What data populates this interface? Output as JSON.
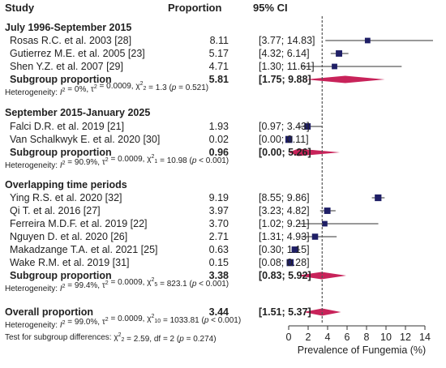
{
  "chart_data": {
    "type": "forest",
    "header": {
      "study": "Study",
      "proportion": "Proportion",
      "ci": "95% CI"
    },
    "xlabel": "Prevalence of Fungemia (%)",
    "xlim": [
      0,
      14
    ],
    "xticks": [
      0,
      2,
      4,
      6,
      8,
      10,
      12,
      14
    ],
    "reference_line": 3.44,
    "colors": {
      "square": "#1f1f66",
      "diamond": "#c8235a",
      "reference": "#555555",
      "text": "#222222"
    },
    "groups": [
      {
        "name": "July 1996-September 2015",
        "studies": [
          {
            "label": "Rosas R.C. et al. 2003 [28]",
            "value": 8.11,
            "lo": 3.77,
            "hi": 14.83,
            "p": "8.11",
            "ci": "[3.77; 14.83]",
            "weight": 0.5
          },
          {
            "label": "Gutierrez M.E. et al. 2005 [23]",
            "value": 5.17,
            "lo": 4.32,
            "hi": 6.14,
            "p": "5.17",
            "ci": "[4.32; 6.14]",
            "weight": 0.8
          },
          {
            "label": "Shen Y.Z. et al. 2007 [29]",
            "value": 4.71,
            "lo": 1.3,
            "hi": 11.61,
            "p": "4.71",
            "ci": "[1.30; 11.61]",
            "weight": 0.5
          }
        ],
        "subgroup": {
          "label": "Subgroup proportion",
          "value": 5.81,
          "lo": 1.75,
          "hi": 9.88,
          "p": "5.81",
          "ci": "[1.75; 9.88]"
        },
        "heterogeneity": [
          {
            "t": "Heterogeneity: "
          },
          {
            "t": "I",
            "i": true
          },
          {
            "t": "2",
            "sup": true
          },
          {
            "t": " = 0%, τ"
          },
          {
            "t": "2",
            "sup": true
          },
          {
            "t": " = 0.0009, χ"
          },
          {
            "t": "2",
            "sup": true
          },
          {
            "t": "2",
            "sub": true
          },
          {
            "t": " = 1.3 ("
          },
          {
            "t": "p",
            "i": true
          },
          {
            "t": " = 0.521)"
          }
        ]
      },
      {
        "name": "September 2015-January 2025",
        "studies": [
          {
            "label": "Falci D.R. et al.  2019 [21]",
            "value": 1.93,
            "lo": 0.97,
            "hi": 3.43,
            "p": "1.93",
            "ci": "[0.97; 3.43]",
            "weight": 0.8
          },
          {
            "label": "Van Schalkwyk E. et al. 2020 [30]",
            "value": 0.02,
            "lo": 0.0,
            "hi": 0.11,
            "p": "0.02",
            "ci": "[0.00; 0.11]",
            "weight": 1.0
          }
        ],
        "subgroup": {
          "label": "Subgroup proportion",
          "value": 0.96,
          "lo": 0.0,
          "hi": 5.26,
          "p": "0.96",
          "ci": "[0.00; 5.26]"
        },
        "heterogeneity": [
          {
            "t": "Heterogeneity: "
          },
          {
            "t": "I",
            "i": true
          },
          {
            "t": "2",
            "sup": true
          },
          {
            "t": " = 90.9%, τ"
          },
          {
            "t": "2",
            "sup": true
          },
          {
            "t": " = 0.0009, χ"
          },
          {
            "t": "2",
            "sup": true
          },
          {
            "t": "1",
            "sub": true
          },
          {
            "t": " = 10.98 ("
          },
          {
            "t": "p",
            "i": true
          },
          {
            "t": " < 0.001)"
          }
        ]
      },
      {
        "name": "Overlapping time periods",
        "studies": [
          {
            "label": "Ying R.S. et al. 2020 [32]",
            "value": 9.19,
            "lo": 8.55,
            "hi": 9.86,
            "p": "9.19",
            "ci": "[8.55; 9.86]",
            "weight": 0.9
          },
          {
            "label": "Qi T. et al. 2016 [27]",
            "value": 3.97,
            "lo": 3.23,
            "hi": 4.82,
            "p": "3.97",
            "ci": "[3.23; 4.82]",
            "weight": 0.8
          },
          {
            "label": "Ferreira M.D.F.  et al. 2019 [22]",
            "value": 3.7,
            "lo": 1.02,
            "hi": 9.21,
            "p": "3.70",
            "ci": "[1.02; 9.21]",
            "weight": 0.5
          },
          {
            "label": "Nguyen D. et al.  2020 [26]",
            "value": 2.71,
            "lo": 1.31,
            "hi": 4.93,
            "p": "2.71",
            "ci": "[1.31; 4.93]",
            "weight": 0.7
          },
          {
            "label": "Makadzange T.A. et al. 2021 [25]",
            "value": 0.63,
            "lo": 0.3,
            "hi": 1.15,
            "p": "0.63",
            "ci": "[0.30; 1.15]",
            "weight": 0.8
          },
          {
            "label": "Wake R.M. et al. 2019 [31]",
            "value": 0.15,
            "lo": 0.08,
            "hi": 0.28,
            "p": "0.15",
            "ci": "[0.08; 0.28]",
            "weight": 1.0
          }
        ],
        "subgroup": {
          "label": "Subgroup proportion",
          "value": 3.38,
          "lo": 0.83,
          "hi": 5.92,
          "p": "3.38",
          "ci": "[0.83; 5.92]"
        },
        "heterogeneity": [
          {
            "t": "Heterogeneity: "
          },
          {
            "t": "I",
            "i": true
          },
          {
            "t": "2",
            "sup": true
          },
          {
            "t": " = 99.4%, τ"
          },
          {
            "t": "2",
            "sup": true
          },
          {
            "t": " = 0.0009, χ"
          },
          {
            "t": "2",
            "sup": true
          },
          {
            "t": "5",
            "sub": true
          },
          {
            "t": " = 823.1 ("
          },
          {
            "t": "p",
            "i": true
          },
          {
            "t": " < 0.001)"
          }
        ]
      }
    ],
    "overall": {
      "label": "Overall proportion",
      "value": 3.44,
      "lo": 1.51,
      "hi": 5.37,
      "p": "3.44",
      "ci": "[1.51; 5.37]",
      "heterogeneity": [
        {
          "t": "Heterogeneity: "
        },
        {
          "t": "I",
          "i": true
        },
        {
          "t": "2",
          "sup": true
        },
        {
          "t": " = 99.0%, τ"
        },
        {
          "t": "2",
          "sup": true
        },
        {
          "t": " = 0.0009, χ"
        },
        {
          "t": "2",
          "sup": true
        },
        {
          "t": "10",
          "sub": true
        },
        {
          "t": " = 1033.81 ("
        },
        {
          "t": "p",
          "i": true
        },
        {
          "t": " < 0.001)"
        }
      ],
      "subgroup_test": [
        {
          "t": "Test for subgroup differences: χ"
        },
        {
          "t": "2",
          "sup": true
        },
        {
          "t": "2",
          "sub": true
        },
        {
          "t": " = 2.59, df = 2 ("
        },
        {
          "t": "p",
          "i": true
        },
        {
          "t": " = 0.274)"
        }
      ]
    }
  }
}
